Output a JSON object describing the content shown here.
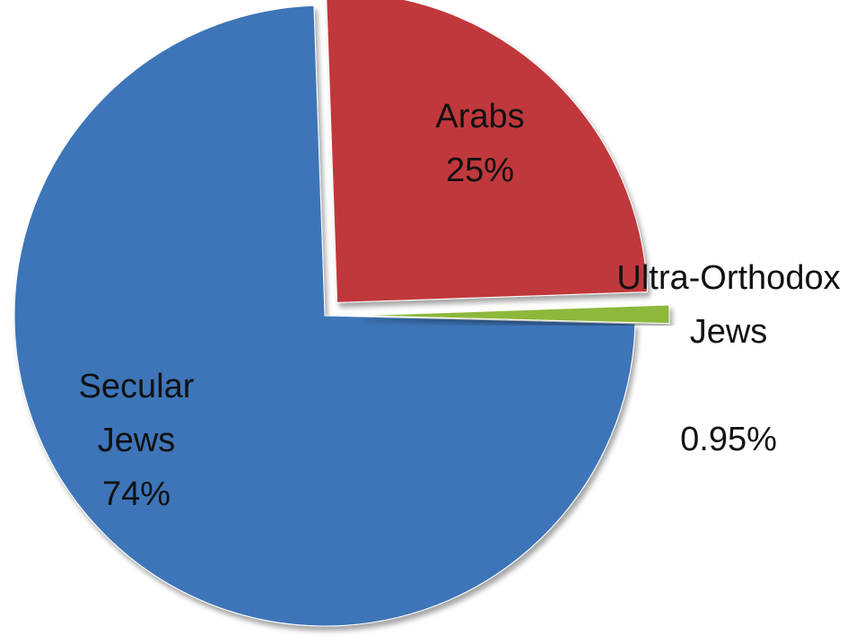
{
  "chart_data": {
    "type": "pie",
    "categories": [
      "Arabs",
      "Ultra-Orthodox Jews",
      "Secular Jews"
    ],
    "values": [
      25,
      0.95,
      74
    ],
    "value_labels": [
      "25%",
      "0.95%",
      "74%"
    ],
    "colors": [
      "#c0393b",
      "#8db83a",
      "#3e75b8"
    ]
  }
}
